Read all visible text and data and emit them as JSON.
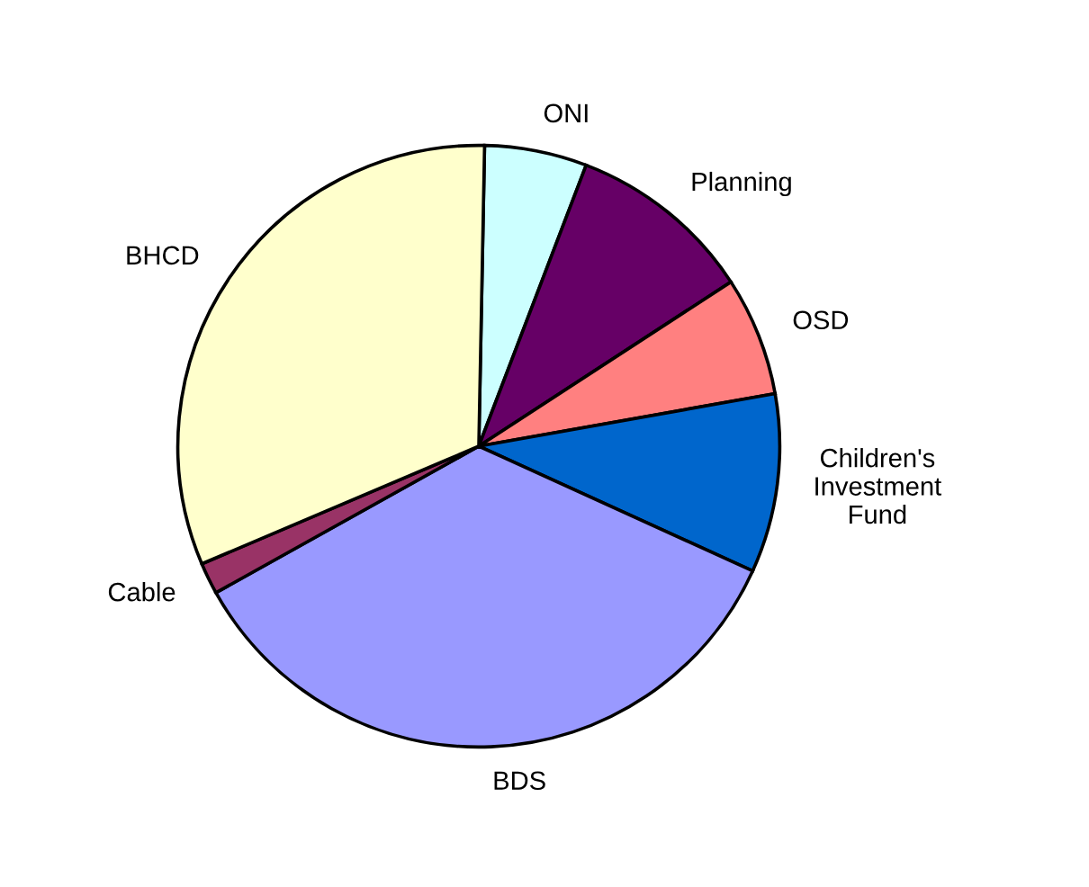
{
  "chart_data": {
    "type": "pie",
    "categories": [
      "ONI",
      "Planning",
      "OSD",
      "Children's\nInvestment\nFund",
      "BDS",
      "Cable",
      "BHCD"
    ],
    "values": [
      5.5,
      10.0,
      6.4,
      9.6,
      35.1,
      1.7,
      31.7
    ],
    "colors": [
      "#ccffff",
      "#660066",
      "#ff8080",
      "#0066cc",
      "#9999ff",
      "#993366",
      "#ffffcc"
    ]
  }
}
